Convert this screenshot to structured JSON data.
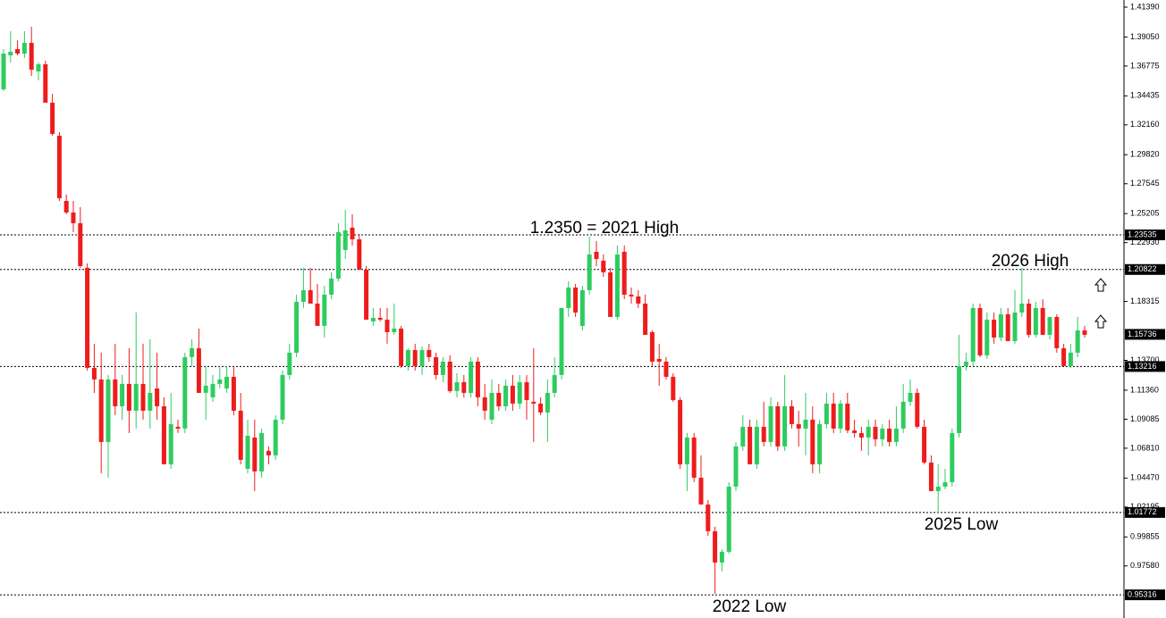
{
  "chart_data": {
    "type": "candlestick",
    "ylim": [
      0.935,
      1.4195
    ],
    "yticks": [
      {
        "value": 1.4139,
        "label": "1.41390"
      },
      {
        "value": 1.3905,
        "label": "1.39050"
      },
      {
        "value": 1.36775,
        "label": "1.36775"
      },
      {
        "value": 1.34435,
        "label": "1.34435"
      },
      {
        "value": 1.3216,
        "label": "1.32160"
      },
      {
        "value": 1.2982,
        "label": "1.29820"
      },
      {
        "value": 1.27545,
        "label": "1.27545"
      },
      {
        "value": 1.25205,
        "label": "1.25205"
      },
      {
        "value": 1.2293,
        "label": "1.22930"
      },
      {
        "value": 1.18315,
        "label": "1.18315"
      },
      {
        "value": 1.137,
        "label": "1.13700"
      },
      {
        "value": 1.1136,
        "label": "1.11360"
      },
      {
        "value": 1.09085,
        "label": "1.09085"
      },
      {
        "value": 1.0681,
        "label": "1.06810"
      },
      {
        "value": 1.0447,
        "label": "1.04470"
      },
      {
        "value": 1.02195,
        "label": "1.02195"
      },
      {
        "value": 0.99855,
        "label": "0.99855"
      },
      {
        "value": 0.9758,
        "label": "0.97580"
      }
    ],
    "levels": [
      {
        "value": 1.23535,
        "label": "1.23535"
      },
      {
        "value": 1.20822,
        "label": "1.20822"
      },
      {
        "value": 1.13216,
        "label": "1.13216"
      },
      {
        "value": 1.01772,
        "label": "1.01772"
      },
      {
        "value": 0.95316,
        "label": "0.95316"
      }
    ],
    "last_price": {
      "value": 1.15736,
      "label": "1.15736"
    },
    "annotations": [
      "1.2350 = 2021 High",
      "2026 High",
      "2025 Low",
      "2022 Low"
    ],
    "up_color": "#2ecc5f",
    "down_color": "#ee1c1c",
    "ohlc": [
      [
        1.3495,
        1.381,
        1.3481,
        1.3775
      ],
      [
        1.3761,
        1.395,
        1.3705,
        1.3789
      ],
      [
        1.381,
        1.388,
        1.3761,
        1.3775
      ],
      [
        1.3775,
        1.395,
        1.374,
        1.3859
      ],
      [
        1.3859,
        1.3985,
        1.36,
        1.3649
      ],
      [
        1.3635,
        1.3705,
        1.3565,
        1.3691
      ],
      [
        1.3691,
        1.3719,
        1.339,
        1.339
      ],
      [
        1.339,
        1.346,
        1.3131,
        1.3145
      ],
      [
        1.3131,
        1.3159,
        1.262,
        1.2641
      ],
      [
        1.262,
        1.2669,
        1.2515,
        1.2529
      ],
      [
        1.2529,
        1.262,
        1.2375,
        1.2445
      ],
      [
        1.2445,
        1.2571,
        1.2095,
        1.2109
      ],
      [
        1.2095,
        1.213,
        1.129,
        1.1311
      ],
      [
        1.1311,
        1.15,
        1.1115,
        1.122
      ],
      [
        1.122,
        1.143,
        1.0485,
        1.073
      ],
      [
        1.073,
        1.1255,
        1.045,
        1.122
      ],
      [
        1.122,
        1.15,
        1.094,
        1.101
      ],
      [
        1.101,
        1.1255,
        1.0905,
        1.1185
      ],
      [
        1.1185,
        1.1465,
        1.08,
        1.0975
      ],
      [
        1.0975,
        1.1745,
        1.0835,
        1.1185
      ],
      [
        1.1185,
        1.15,
        1.0905,
        1.0975
      ],
      [
        1.0975,
        1.1535,
        1.0835,
        1.1115
      ],
      [
        1.115,
        1.143,
        1.0905,
        1.101
      ],
      [
        1.101,
        1.108,
        1.0555,
        1.0555
      ],
      [
        1.0555,
        1.1115,
        1.052,
        1.087
      ],
      [
        1.0849,
        1.0905,
        1.08,
        1.0835
      ],
      [
        1.0835,
        1.143,
        1.08,
        1.1395
      ],
      [
        1.1395,
        1.1535,
        1.1325,
        1.1465
      ],
      [
        1.1465,
        1.1619,
        1.1115,
        1.1115
      ],
      [
        1.1115,
        1.1325,
        1.0905,
        1.1171
      ],
      [
        1.108,
        1.1255,
        1.1045,
        1.1185
      ],
      [
        1.1185,
        1.1325,
        1.115,
        1.122
      ],
      [
        1.115,
        1.1325,
        1.1115,
        1.1241
      ],
      [
        1.1241,
        1.1325,
        1.094,
        1.0975
      ],
      [
        1.0975,
        1.1115,
        1.0555,
        1.059
      ],
      [
        1.052,
        1.0905,
        1.0485,
        1.0779
      ],
      [
        1.0765,
        1.0905,
        1.0345,
        1.0499
      ],
      [
        1.0499,
        1.0835,
        1.045,
        1.08
      ],
      [
        1.066,
        1.0695,
        1.0555,
        1.0625
      ],
      [
        1.0625,
        1.094,
        1.059,
        1.0905
      ],
      [
        1.0905,
        1.129,
        1.087,
        1.1255
      ],
      [
        1.1255,
        1.15,
        1.122,
        1.143
      ],
      [
        1.143,
        1.1885,
        1.1395,
        1.1829
      ],
      [
        1.1829,
        1.2095,
        1.178,
        1.192
      ],
      [
        1.192,
        1.2095,
        1.1815,
        1.1815
      ],
      [
        1.1815,
        1.1969,
        1.164,
        1.164
      ],
      [
        1.164,
        1.1955,
        1.1549,
        1.1885
      ],
      [
        1.1885,
        1.206,
        1.185,
        1.2011
      ],
      [
        1.2011,
        1.2445,
        1.199,
        1.2375
      ],
      [
        1.2235,
        1.255,
        1.2165,
        1.2389
      ],
      [
        1.241,
        1.2515,
        1.227,
        1.2319
      ],
      [
        1.2319,
        1.2361,
        1.2081,
        1.2081
      ],
      [
        1.2081,
        1.2109,
        1.1689,
        1.1689
      ],
      [
        1.1675,
        1.178,
        1.164,
        1.1703
      ],
      [
        1.1703,
        1.178,
        1.1675,
        1.1689
      ],
      [
        1.1689,
        1.178,
        1.15,
        1.1591
      ],
      [
        1.1591,
        1.1815,
        1.157,
        1.1619
      ],
      [
        1.1619,
        1.164,
        1.1311,
        1.1325
      ],
      [
        1.1325,
        1.1465,
        1.129,
        1.1451
      ],
      [
        1.1451,
        1.15,
        1.129,
        1.1325
      ],
      [
        1.1325,
        1.1479,
        1.1255,
        1.1451
      ],
      [
        1.1451,
        1.15,
        1.136,
        1.1395
      ],
      [
        1.1395,
        1.143,
        1.122,
        1.1255
      ],
      [
        1.1255,
        1.1395,
        1.1199,
        1.136
      ],
      [
        1.136,
        1.1409,
        1.1115,
        1.1129
      ],
      [
        1.1129,
        1.1269,
        1.108,
        1.1199
      ],
      [
        1.1199,
        1.1255,
        1.108,
        1.1115
      ],
      [
        1.1115,
        1.1395,
        1.108,
        1.136
      ],
      [
        1.136,
        1.1395,
        1.101,
        1.108
      ],
      [
        1.108,
        1.1185,
        1.0905,
        1.0975
      ],
      [
        1.0905,
        1.122,
        1.087,
        1.1115
      ],
      [
        1.1115,
        1.1185,
        1.0975,
        1.101
      ],
      [
        1.101,
        1.122,
        1.0975,
        1.1171
      ],
      [
        1.1171,
        1.1255,
        1.0975,
        1.1031
      ],
      [
        1.1031,
        1.1255,
        1.0989,
        1.1199
      ],
      [
        1.1199,
        1.1255,
        1.0905,
        1.1059
      ],
      [
        1.1045,
        1.1465,
        1.073,
        1.1031
      ],
      [
        1.1031,
        1.108,
        1.094,
        1.0961
      ],
      [
        1.0961,
        1.122,
        1.073,
        1.1115
      ],
      [
        1.1115,
        1.1395,
        1.108,
        1.1255
      ],
      [
        1.1255,
        1.178,
        1.122,
        1.178
      ],
      [
        1.178,
        1.199,
        1.171,
        1.1941
      ],
      [
        1.1941,
        1.1969,
        1.171,
        1.1745
      ],
      [
        1.164,
        1.1955,
        1.1605,
        1.192
      ],
      [
        1.192,
        1.234,
        1.1885,
        1.22
      ],
      [
        1.2221,
        1.2305,
        1.2109,
        1.2165
      ],
      [
        1.2151,
        1.22,
        1.2025,
        1.206
      ],
      [
        1.206,
        1.2095,
        1.171,
        1.171
      ],
      [
        1.171,
        1.227,
        1.1689,
        1.22
      ],
      [
        1.2221,
        1.227,
        1.185,
        1.1885
      ],
      [
        1.1885,
        1.1941,
        1.1815,
        1.1871
      ],
      [
        1.1871,
        1.192,
        1.178,
        1.1815
      ],
      [
        1.1815,
        1.1885,
        1.157,
        1.157
      ],
      [
        1.1591,
        1.1605,
        1.1325,
        1.136
      ],
      [
        1.1381,
        1.15,
        1.1171,
        1.136
      ],
      [
        1.136,
        1.1395,
        1.122,
        1.1241
      ],
      [
        1.1241,
        1.1269,
        1.1045,
        1.1059
      ],
      [
        1.1059,
        1.108,
        1.052,
        1.0555
      ],
      [
        1.0555,
        1.08,
        1.0345,
        1.0765
      ],
      [
        1.0765,
        1.08,
        1.0415,
        1.045
      ],
      [
        1.045,
        1.0625,
        1.024,
        1.024
      ],
      [
        1.024,
        1.0275,
        0.9995,
        1.003
      ],
      [
        1.003,
        1.0065,
        0.954,
        0.9785
      ],
      [
        0.9785,
        0.989,
        0.9715,
        0.9869
      ],
      [
        0.9869,
        1.0415,
        0.9855,
        1.038
      ],
      [
        1.038,
        1.073,
        1.0345,
        1.0695
      ],
      [
        1.0695,
        1.094,
        1.066,
        1.0849
      ],
      [
        1.0849,
        1.0905,
        1.0555,
        1.0555
      ],
      [
        1.0555,
        1.0905,
        1.052,
        1.0849
      ],
      [
        1.0849,
        1.1045,
        1.0695,
        1.073
      ],
      [
        1.073,
        1.108,
        1.0695,
        1.101
      ],
      [
        1.101,
        1.1045,
        1.066,
        1.0695
      ],
      [
        1.0695,
        1.1255,
        1.066,
        1.101
      ],
      [
        1.101,
        1.1059,
        1.0835,
        1.087
      ],
      [
        1.087,
        1.0975,
        1.0695,
        1.0835
      ],
      [
        1.0835,
        1.1115,
        1.0625,
        1.0905
      ],
      [
        1.0905,
        1.101,
        1.0485,
        1.0555
      ],
      [
        1.0555,
        1.0905,
        1.0485,
        1.087
      ],
      [
        1.087,
        1.1115,
        1.0835,
        1.1031
      ],
      [
        1.1031,
        1.1115,
        1.08,
        1.0835
      ],
      [
        1.0835,
        1.1059,
        1.08,
        1.1031
      ],
      [
        1.1031,
        1.1115,
        1.08,
        1.0821
      ],
      [
        1.0821,
        1.0905,
        1.0765,
        1.08
      ],
      [
        1.08,
        1.0849,
        1.066,
        1.0765
      ],
      [
        1.0765,
        1.0905,
        1.0625,
        1.0849
      ],
      [
        1.0849,
        1.0905,
        1.0695,
        1.0751
      ],
      [
        1.0751,
        1.087,
        1.0695,
        1.0835
      ],
      [
        1.0835,
        1.0905,
        1.0695,
        1.073
      ],
      [
        1.073,
        1.101,
        1.0695,
        1.0835
      ],
      [
        1.0835,
        1.1185,
        1.08,
        1.1045
      ],
      [
        1.1045,
        1.122,
        1.101,
        1.1115
      ],
      [
        1.1115,
        1.115,
        1.0835,
        1.0849
      ],
      [
        1.0849,
        1.0905,
        1.0555,
        1.0569
      ],
      [
        1.0569,
        1.0625,
        1.0345,
        1.0345
      ],
      [
        1.0345,
        1.0555,
        1.017,
        1.038
      ],
      [
        1.038,
        1.052,
        1.0359,
        1.0415
      ],
      [
        1.0415,
        1.0835,
        1.038,
        1.08
      ],
      [
        1.08,
        1.157,
        1.0765,
        1.1325
      ],
      [
        1.1325,
        1.143,
        1.129,
        1.136
      ],
      [
        1.136,
        1.1815,
        1.1325,
        1.178
      ],
      [
        1.178,
        1.1815,
        1.1395,
        1.1409
      ],
      [
        1.1409,
        1.1745,
        1.1381,
        1.1689
      ],
      [
        1.1689,
        1.1745,
        1.15,
        1.1549
      ],
      [
        1.1549,
        1.178,
        1.1521,
        1.1731
      ],
      [
        1.1731,
        1.178,
        1.1521,
        1.1521
      ],
      [
        1.1521,
        1.192,
        1.15,
        1.1745
      ],
      [
        1.1745,
        1.2095,
        1.171,
        1.1815
      ],
      [
        1.1815,
        1.185,
        1.1549,
        1.157
      ],
      [
        1.157,
        1.1829,
        1.1549,
        1.178
      ],
      [
        1.178,
        1.185,
        1.157,
        1.157
      ],
      [
        1.157,
        1.171,
        1.1535,
        1.171
      ],
      [
        1.171,
        1.1731,
        1.143,
        1.1465
      ],
      [
        1.1465,
        1.15,
        1.1325,
        1.1325
      ],
      [
        1.1325,
        1.15,
        1.1311,
        1.143
      ],
      [
        1.143,
        1.171,
        1.1395,
        1.1605
      ],
      [
        1.1605,
        1.164,
        1.1549,
        1.157
      ]
    ]
  }
}
